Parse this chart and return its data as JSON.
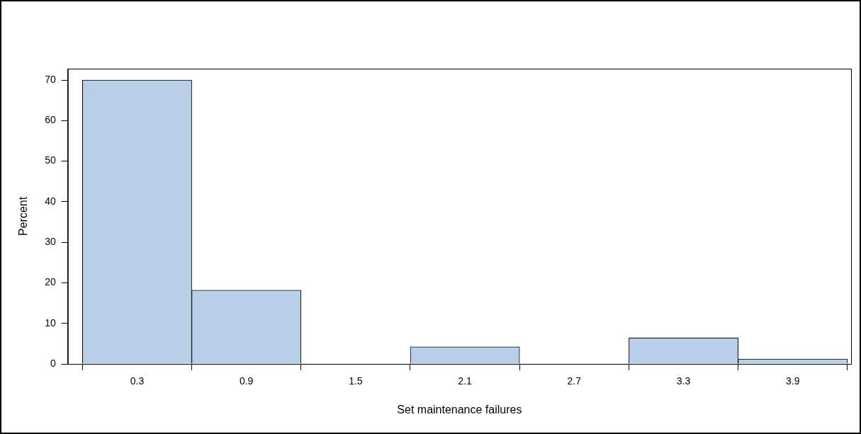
{
  "chart_data": {
    "type": "histogram",
    "xlabel": "Set maintenance failures",
    "ylabel": "Percent",
    "bins": [
      0,
      0.6,
      1.2,
      1.8,
      2.4,
      3.0,
      3.6,
      4.2
    ],
    "values": [
      70,
      18.2,
      0,
      4.2,
      0,
      6.4,
      1.2
    ],
    "color": "#b9cfe7",
    "xlim": [
      -0.08,
      4.22
    ],
    "xticks": [
      0.3,
      0.9,
      1.5,
      2.1,
      2.7,
      3.3,
      3.9
    ],
    "ylim": [
      0,
      72.8
    ],
    "yticks": [
      0,
      10,
      20,
      30,
      40,
      50,
      60,
      70
    ],
    "grid": false,
    "legend": false
  }
}
